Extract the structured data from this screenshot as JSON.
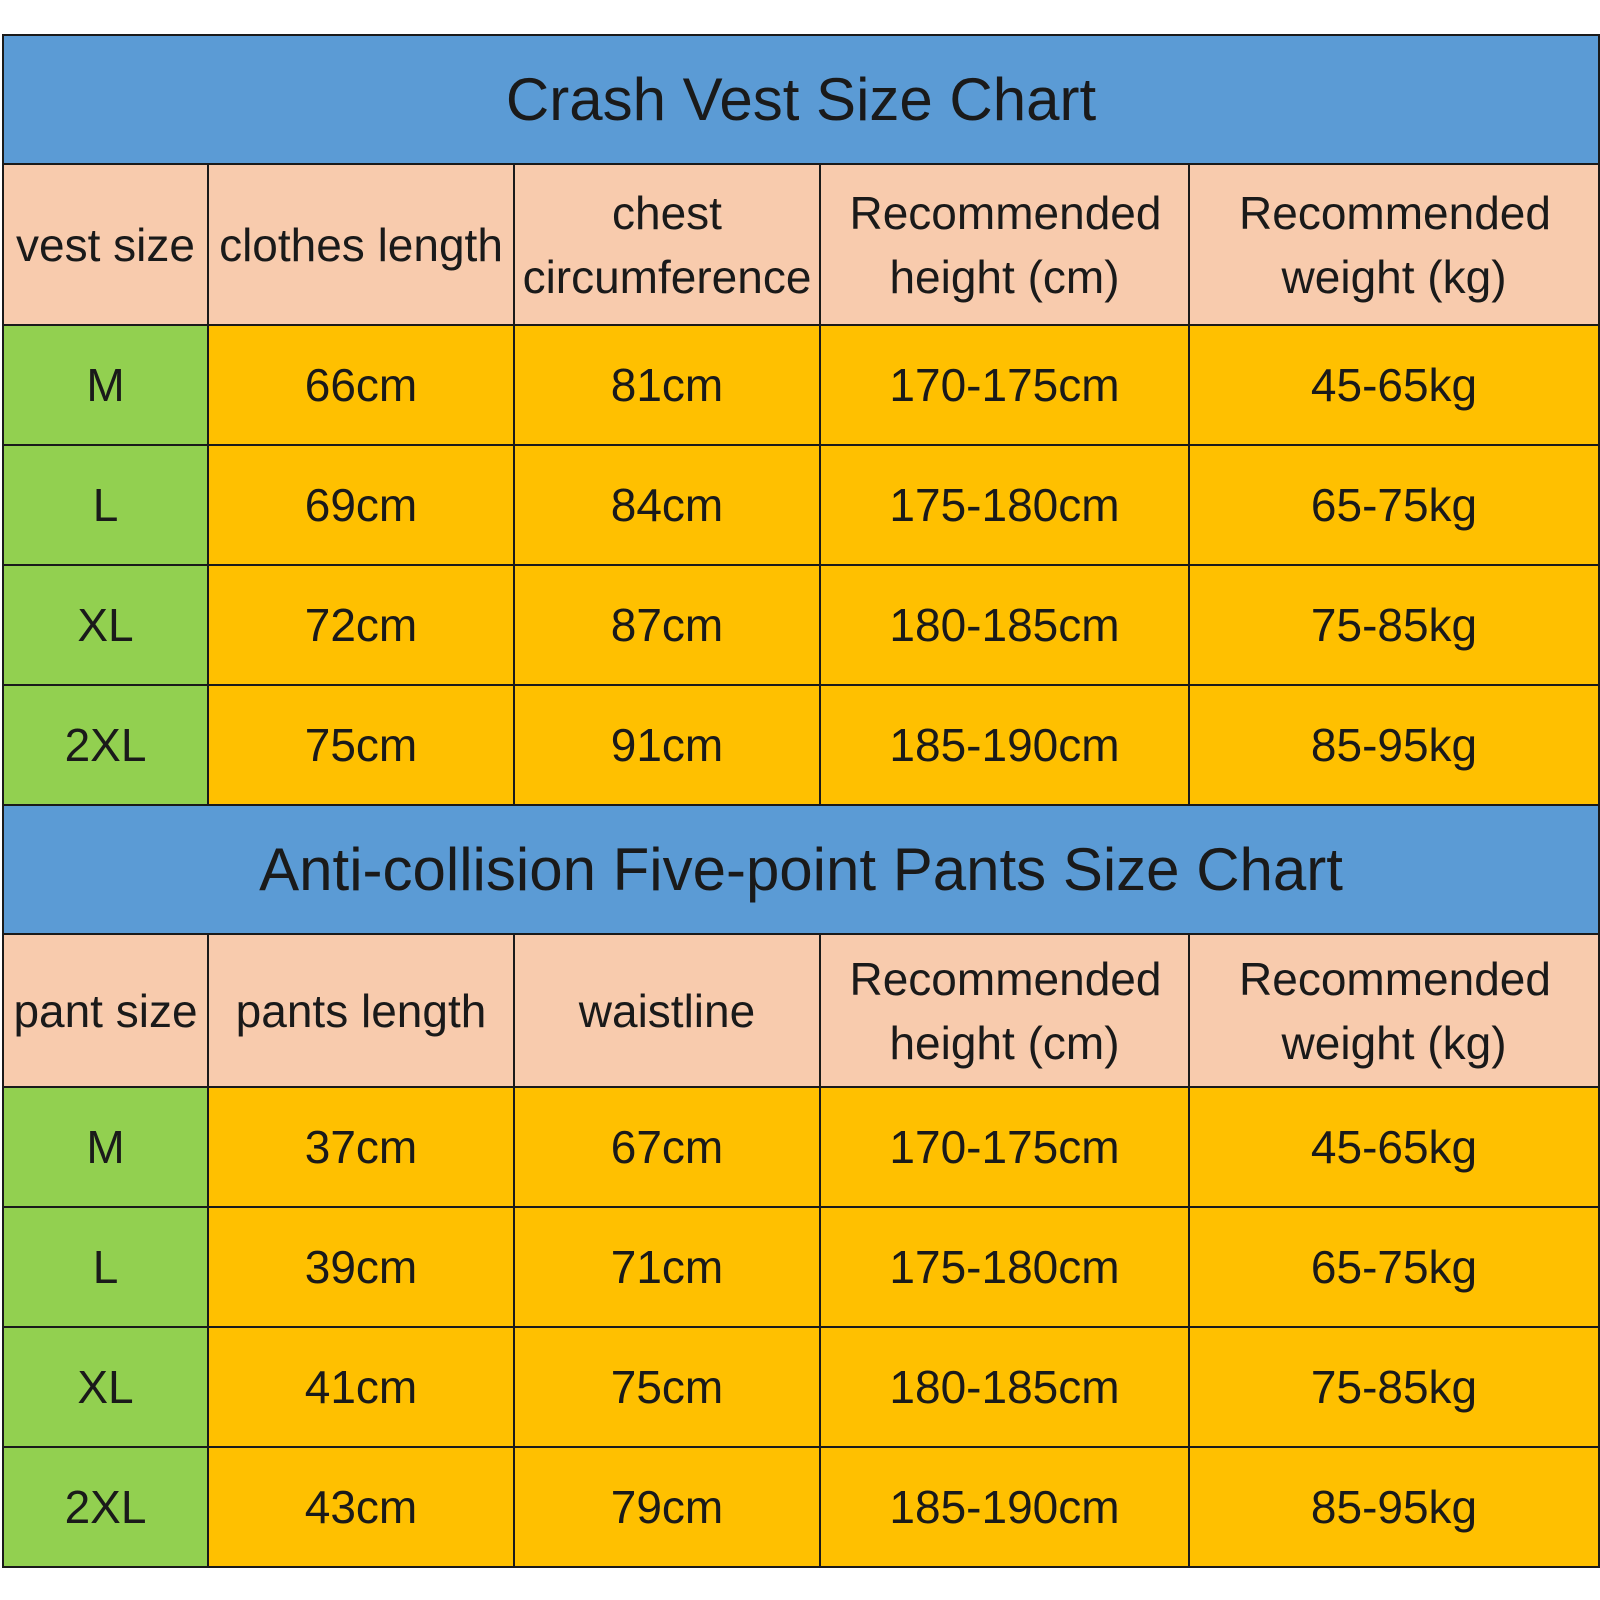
{
  "vest_chart": {
    "title": "Crash Vest Size Chart",
    "headers": [
      "vest size",
      "clothes length",
      "chest circumference",
      "Recommended height (cm)",
      "Recommended weight (kg)"
    ],
    "rows": [
      [
        "M",
        "66cm",
        "81cm",
        "170-175cm",
        "45-65kg"
      ],
      [
        "L",
        "69cm",
        "84cm",
        "175-180cm",
        "65-75kg"
      ],
      [
        "XL",
        "72cm",
        "87cm",
        "180-185cm",
        "75-85kg"
      ],
      [
        "2XL",
        "75cm",
        "91cm",
        "185-190cm",
        "85-95kg"
      ]
    ]
  },
  "pants_chart": {
    "title": "Anti-collision Five-point Pants Size Chart",
    "headers": [
      "pant size",
      "pants length",
      "waistline",
      "Recommended height (cm)",
      "Recommended weight (kg)"
    ],
    "rows": [
      [
        "M",
        "37cm",
        "67cm",
        "170-175cm",
        "45-65kg"
      ],
      [
        "L",
        "39cm",
        "71cm",
        "175-180cm",
        "65-75kg"
      ],
      [
        "XL",
        "41cm",
        "75cm",
        "180-185cm",
        "75-85kg"
      ],
      [
        "2XL",
        "43cm",
        "79cm",
        "185-190cm",
        "85-95kg"
      ]
    ]
  },
  "colors": {
    "title_band": "#5b9bd5",
    "header_band": "#f8cbad",
    "size_column": "#92d050",
    "value_cells": "#ffc000"
  }
}
